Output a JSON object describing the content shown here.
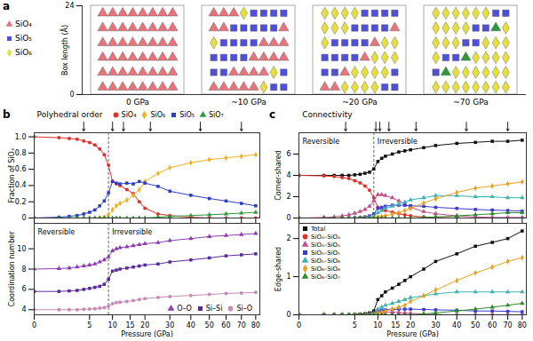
{
  "chart_data": [
    {
      "type": "illustration",
      "label": "a",
      "ylabel": "Box length (Å)",
      "ylim": [
        0,
        24
      ],
      "yticks": [
        0,
        24
      ],
      "legend": "left",
      "legend_items": [
        {
          "name": "SiO₄",
          "color": "#e8737a",
          "marker": "triangle"
        },
        {
          "name": "SiO₅",
          "color": "#4f4fd9",
          "marker": "square"
        },
        {
          "name": "SiO₆",
          "color": "#e6df3c",
          "marker": "diamond"
        }
      ],
      "snapshots": [
        {
          "label": "0 GPa",
          "pressure": 0
        },
        {
          "label": "~10 GPa",
          "pressure": 10
        },
        {
          "label": "~20 GPa",
          "pressure": 20
        },
        {
          "label": "~70 GPa",
          "pressure": 70
        }
      ]
    },
    {
      "type": "line",
      "label": "b",
      "title": "Polyhedral order",
      "ylabel": "Fraction of SiOₓ",
      "tick_labels": "y",
      "legend": "top",
      "x": [
        0,
        1,
        2,
        3,
        4,
        5,
        6,
        7,
        8,
        9,
        10,
        11,
        12,
        14,
        16,
        18,
        20,
        25,
        30,
        40,
        50,
        60,
        70,
        80
      ],
      "xlim": [
        0,
        83
      ],
      "xticks": [
        0,
        5,
        10,
        15,
        20,
        30,
        40,
        50,
        60,
        70,
        80
      ],
      "ylim": [
        0,
        1.05
      ],
      "yticks": [
        0,
        0.2,
        0.4,
        0.6,
        0.8,
        {
          "value": 1,
          "label": "1.0"
        }
      ],
      "arrows": [
        4,
        10,
        13,
        22,
        45,
        70
      ],
      "reversible_limit": 9,
      "series": [
        {
          "name": "SiO₄",
          "color": "#e0312b",
          "marker": "circle",
          "values": [
            1.0,
            0.99,
            0.98,
            0.97,
            0.95,
            0.93,
            0.9,
            0.85,
            0.78,
            0.65,
            0.45,
            0.42,
            0.4,
            0.35,
            0.3,
            0.2,
            0.12,
            0.05,
            0.03,
            0.01,
            0,
            0,
            0,
            0
          ]
        },
        {
          "name": "SiO₆",
          "color": "#f0b020",
          "marker": "diamond",
          "values": [
            0,
            0,
            0,
            0,
            0,
            0,
            0,
            0,
            0.01,
            0.04,
            0.1,
            0.15,
            0.18,
            0.22,
            0.28,
            0.35,
            0.45,
            0.55,
            0.62,
            0.68,
            0.72,
            0.74,
            0.76,
            0.78
          ]
        },
        {
          "name": "SiO₅",
          "color": "#2b3fbf",
          "marker": "square",
          "values": [
            0,
            0.01,
            0.02,
            0.03,
            0.05,
            0.07,
            0.1,
            0.15,
            0.21,
            0.31,
            0.45,
            0.43,
            0.42,
            0.43,
            0.42,
            0.45,
            0.43,
            0.39,
            0.33,
            0.28,
            0.24,
            0.21,
            0.18,
            0.15
          ]
        },
        {
          "name": "SiO₇",
          "color": "#2e9a3a",
          "marker": "triangle",
          "values": [
            0,
            0,
            0,
            0,
            0,
            0,
            0,
            0,
            0,
            0,
            0,
            0,
            0,
            0,
            0,
            0,
            0,
            0.01,
            0.02,
            0.03,
            0.04,
            0.05,
            0.06,
            0.07
          ]
        }
      ]
    },
    {
      "type": "line",
      "xlabel": "Pressure (GPa)",
      "ylabel": "Coordination number",
      "legend": "bottom-right",
      "annotations": [
        "Reversible",
        "Irreversible"
      ],
      "reversible_limit": 9,
      "x": [
        0,
        1,
        2,
        3,
        4,
        5,
        6,
        7,
        8,
        9,
        10,
        11,
        12,
        14,
        16,
        18,
        20,
        25,
        30,
        40,
        50,
        60,
        70,
        80
      ],
      "xlim": [
        0,
        83
      ],
      "xticks": [
        0,
        5,
        10,
        15,
        20,
        30,
        40,
        50,
        60,
        70,
        80
      ],
      "ylim": [
        3.5,
        12.5
      ],
      "yticks": [
        4,
        6,
        8,
        10
      ],
      "series": [
        {
          "name": "O–O",
          "color": "#8a3fb0",
          "marker": "triangle",
          "values": [
            8.0,
            8.05,
            8.1,
            8.2,
            8.3,
            8.4,
            8.5,
            8.7,
            8.9,
            9.2,
            9.8,
            10.0,
            10.1,
            10.2,
            10.3,
            10.4,
            10.5,
            10.6,
            10.8,
            11.0,
            11.2,
            11.3,
            11.4,
            11.5
          ]
        },
        {
          "name": "Si–Si",
          "color": "#5b2a9a",
          "marker": "square",
          "values": [
            5.8,
            5.8,
            5.85,
            5.9,
            6.0,
            6.1,
            6.2,
            6.3,
            6.5,
            7.0,
            7.8,
            7.9,
            8.0,
            8.1,
            8.2,
            8.3,
            8.4,
            8.5,
            8.7,
            8.9,
            9.1,
            9.3,
            9.4,
            9.5
          ]
        },
        {
          "name": "Si–O",
          "color": "#c58ab8",
          "marker": "circle",
          "values": [
            4.0,
            4.0,
            4.0,
            4.0,
            4.05,
            4.07,
            4.1,
            4.15,
            4.2,
            4.35,
            4.6,
            4.7,
            4.75,
            4.8,
            4.9,
            5.0,
            5.1,
            5.2,
            5.3,
            5.4,
            5.5,
            5.6,
            5.65,
            5.7
          ]
        }
      ]
    },
    {
      "type": "line",
      "label": "c",
      "title": "Connectivity",
      "ylabel": "Corner-shared",
      "tick_labels": "y",
      "annotations": [
        "Reversible",
        "Irreversible"
      ],
      "reversible_limit": 9,
      "x": [
        0,
        1,
        2,
        3,
        4,
        5,
        6,
        7,
        8,
        9,
        10,
        11,
        12,
        14,
        16,
        18,
        20,
        25,
        30,
        40,
        50,
        60,
        70,
        80
      ],
      "xlim": [
        0,
        83
      ],
      "xticks": [
        0,
        5,
        10,
        15,
        20,
        30,
        40,
        50,
        60,
        70,
        80
      ],
      "ylim": [
        0,
        8
      ],
      "yticks": [
        0,
        2,
        4,
        6
      ],
      "arrows": [
        3.5,
        9.5,
        10.5,
        13,
        22,
        45,
        70
      ],
      "series": [
        {
          "name": "Total",
          "color": "#111111",
          "marker": "square",
          "values": [
            4.0,
            4.0,
            4.0,
            4.0,
            4.0,
            4.05,
            4.1,
            4.2,
            4.3,
            4.6,
            5.3,
            5.6,
            5.8,
            6.0,
            6.2,
            6.3,
            6.4,
            6.6,
            6.8,
            7.0,
            7.1,
            7.2,
            7.2,
            7.3
          ]
        },
        {
          "name": "SiO₄–SiO₄",
          "color": "#e0312b",
          "marker": "circle",
          "values": [
            4.0,
            3.95,
            3.9,
            3.8,
            3.7,
            3.5,
            3.3,
            3.0,
            2.6,
            1.9,
            1.0,
            0.8,
            0.7,
            0.55,
            0.4,
            0.3,
            0.2,
            0.1,
            0.05,
            0,
            0,
            0,
            0,
            0
          ]
        },
        {
          "name": "SiO₄–SiO₅",
          "color": "#c0508a",
          "marker": "triangle",
          "values": [
            0,
            0.05,
            0.1,
            0.2,
            0.3,
            0.45,
            0.6,
            0.8,
            1.1,
            1.6,
            2.2,
            2.2,
            2.1,
            1.9,
            1.6,
            1.3,
            1.0,
            0.6,
            0.4,
            0.2,
            0.1,
            0.05,
            0.05,
            0.05
          ]
        },
        {
          "name": "SiO₅–SiO₅",
          "color": "#3a3ad0",
          "marker": "square",
          "values": [
            0,
            0,
            0,
            0,
            0,
            0.02,
            0.05,
            0.1,
            0.2,
            0.4,
            0.9,
            1.0,
            1.1,
            1.2,
            1.2,
            1.2,
            1.15,
            1.1,
            1.0,
            0.9,
            0.8,
            0.75,
            0.7,
            0.65
          ]
        },
        {
          "name": "SiO₅–SiO₆",
          "color": "#3cb3b3",
          "marker": "triangle",
          "values": [
            0,
            0,
            0,
            0,
            0,
            0,
            0,
            0,
            0.05,
            0.15,
            0.5,
            0.7,
            0.9,
            1.1,
            1.3,
            1.5,
            1.7,
            1.9,
            2.1,
            2.1,
            2.0,
            2.0,
            1.9,
            1.9
          ]
        },
        {
          "name": "SiO₆–SiO₆",
          "color": "#e8a020",
          "marker": "diamond",
          "values": [
            0,
            0,
            0,
            0,
            0,
            0,
            0,
            0,
            0,
            0.02,
            0.1,
            0.15,
            0.2,
            0.35,
            0.5,
            0.7,
            0.9,
            1.4,
            1.8,
            2.4,
            2.8,
            3.0,
            3.2,
            3.4
          ]
        },
        {
          "name": "SiO₆–SiO₇",
          "color": "#2e8b2e",
          "marker": "triangle",
          "values": [
            0,
            0,
            0,
            0,
            0,
            0,
            0,
            0,
            0,
            0,
            0,
            0,
            0,
            0,
            0,
            0,
            0,
            0.05,
            0.1,
            0.2,
            0.3,
            0.4,
            0.5,
            0.5
          ]
        }
      ]
    },
    {
      "type": "line",
      "xlabel": "Pressure (GPa)",
      "ylabel": "Edge-shared",
      "legend": "top-left",
      "x": [
        0,
        1,
        2,
        3,
        4,
        5,
        6,
        7,
        8,
        9,
        10,
        11,
        12,
        14,
        16,
        18,
        20,
        25,
        30,
        40,
        50,
        60,
        70,
        80
      ],
      "xlim": [
        0,
        83
      ],
      "xticks": [
        0,
        5,
        10,
        15,
        20,
        30,
        40,
        50,
        60,
        70,
        80
      ],
      "ylim": [
        0,
        2.4
      ],
      "yticks": [
        0,
        1,
        2
      ],
      "series": [
        {
          "name": "Total",
          "color": "#111111",
          "marker": "square",
          "values": [
            0,
            0,
            0,
            0,
            0,
            0.01,
            0.02,
            0.03,
            0.05,
            0.1,
            0.4,
            0.5,
            0.6,
            0.7,
            0.8,
            0.9,
            1.0,
            1.2,
            1.4,
            1.6,
            1.8,
            1.9,
            2.0,
            2.2
          ]
        },
        {
          "name": "SiO₄–SiO₄",
          "color": "#e0312b",
          "marker": "circle",
          "values": [
            0,
            0,
            0,
            0,
            0,
            0,
            0,
            0,
            0,
            0,
            0,
            0,
            0,
            0,
            0,
            0,
            0,
            0,
            0,
            0,
            0,
            0,
            0,
            0
          ]
        },
        {
          "name": "SiO₄–SiO₅",
          "color": "#c0508a",
          "marker": "triangle",
          "values": [
            0,
            0,
            0,
            0,
            0,
            0,
            0,
            0,
            0.01,
            0.03,
            0.08,
            0.08,
            0.08,
            0.07,
            0.06,
            0.05,
            0.04,
            0.02,
            0.01,
            0,
            0,
            0,
            0,
            0
          ]
        },
        {
          "name": "SiO₅–SiO₅",
          "color": "#3a3ad0",
          "marker": "square",
          "values": [
            0,
            0,
            0,
            0,
            0,
            0,
            0,
            0,
            0,
            0.02,
            0.1,
            0.12,
            0.13,
            0.14,
            0.15,
            0.15,
            0.15,
            0.14,
            0.13,
            0.12,
            0.1,
            0.1,
            0.09,
            0.08
          ]
        },
        {
          "name": "SiO₅–SiO₆",
          "color": "#3cb3b3",
          "marker": "triangle",
          "values": [
            0,
            0,
            0,
            0,
            0,
            0,
            0,
            0,
            0,
            0.03,
            0.15,
            0.2,
            0.25,
            0.3,
            0.35,
            0.4,
            0.45,
            0.5,
            0.55,
            0.6,
            0.6,
            0.6,
            0.6,
            0.6
          ]
        },
        {
          "name": "SiO₆–SiO₆",
          "color": "#e8a020",
          "marker": "diamond",
          "values": [
            0,
            0,
            0,
            0,
            0,
            0,
            0,
            0,
            0,
            0.01,
            0.05,
            0.07,
            0.1,
            0.15,
            0.2,
            0.25,
            0.35,
            0.5,
            0.65,
            0.9,
            1.1,
            1.25,
            1.4,
            1.5
          ]
        },
        {
          "name": "SiO₆–SiO₇",
          "color": "#2e8b2e",
          "marker": "triangle",
          "values": [
            0,
            0,
            0,
            0,
            0,
            0,
            0,
            0,
            0,
            0,
            0,
            0,
            0,
            0,
            0,
            0,
            0,
            0.02,
            0.05,
            0.1,
            0.15,
            0.2,
            0.25,
            0.3
          ]
        }
      ]
    }
  ]
}
